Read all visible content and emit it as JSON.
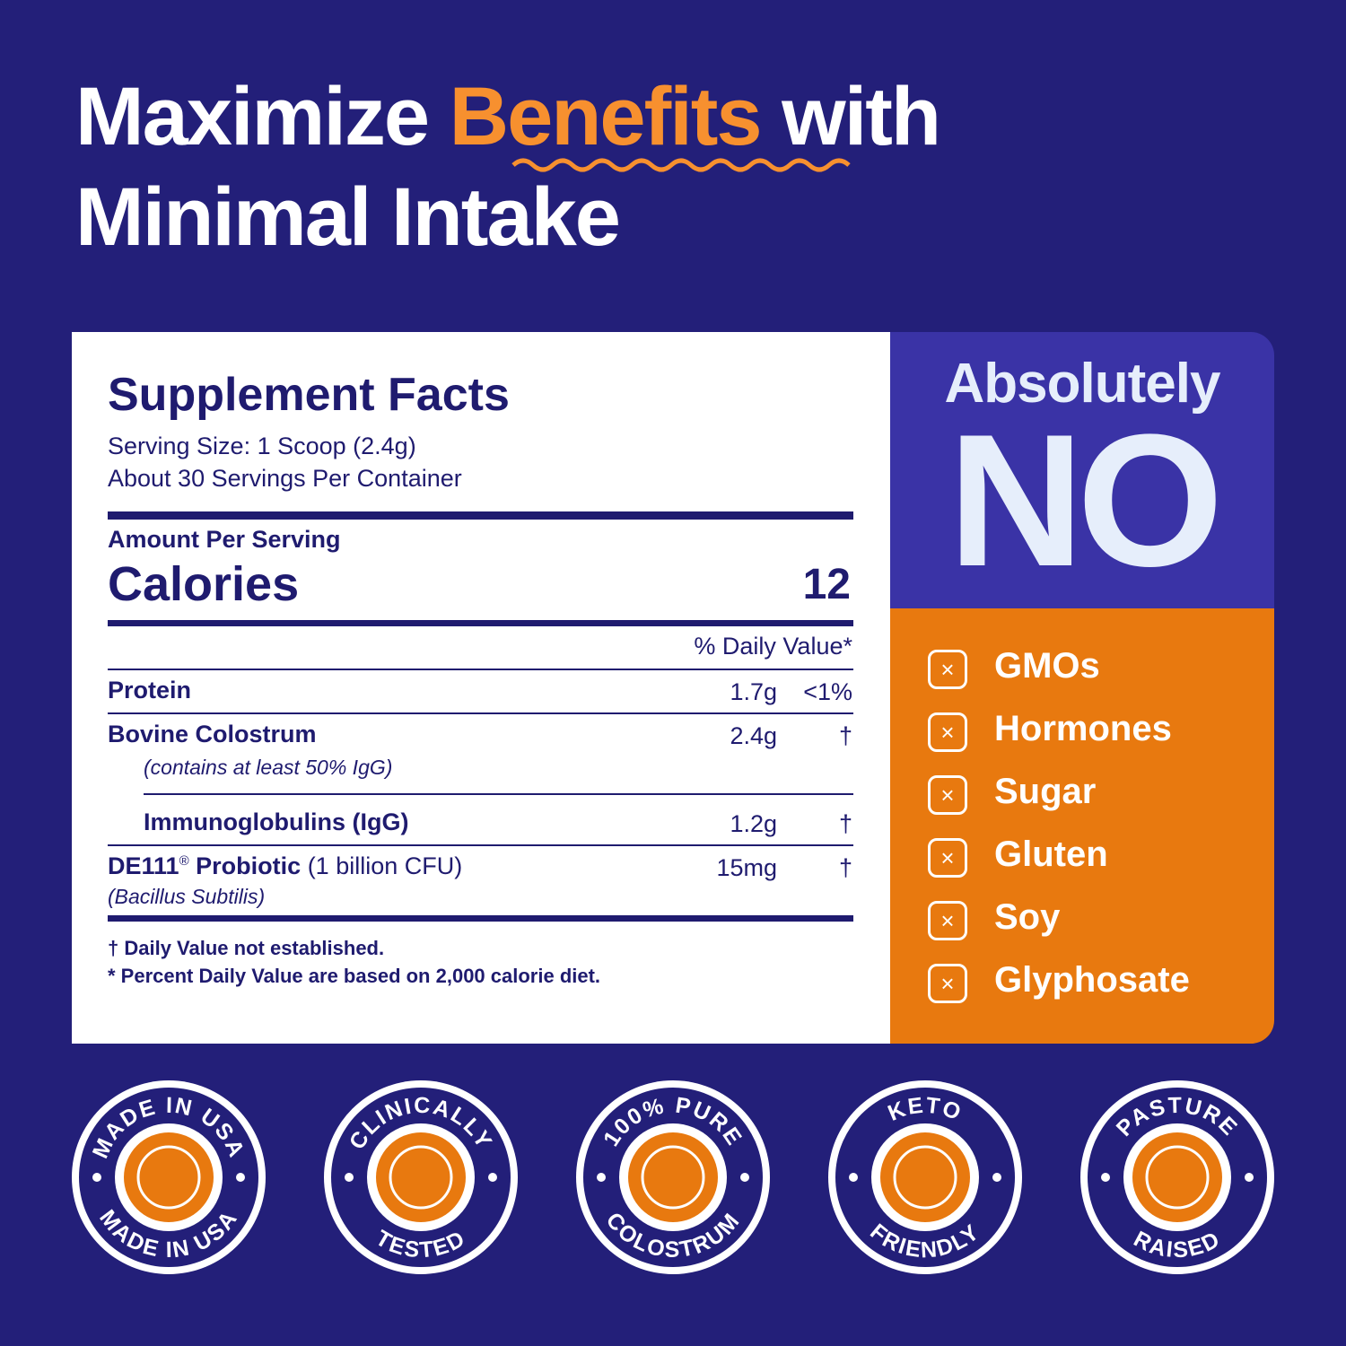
{
  "headline": {
    "part1": "Maximize",
    "highlight": "Benefits",
    "part2": "with",
    "line2": "Minimal Intake"
  },
  "facts": {
    "title": "Supplement Facts",
    "serving_size": "Serving Size: 1 Scoop (2.4g)",
    "servings": "About 30 Servings Per Container",
    "amount_per_serving": "Amount Per Serving",
    "calories_label": "Calories",
    "calories": 12,
    "dv_header": "% Daily Value*",
    "rows": [
      {
        "name": "Protein",
        "amount": "1.7g",
        "dv": "<1%"
      },
      {
        "name": "Bovine Colostrum",
        "note": "(contains at least 50% IgG)",
        "amount": "2.4g",
        "dv": "†"
      },
      {
        "name": "Immunoglobulins (IgG)",
        "amount": "1.2g",
        "dv": "†"
      },
      {
        "name": "DE111",
        "mark": "®",
        "name2": "Probiotic",
        "detail": "(1 billion CFU)",
        "note": "(Bacillus Subtilis)",
        "amount": "15mg",
        "dv": "†"
      }
    ],
    "footnotes": [
      "† Daily Value not established.",
      "* Percent Daily Value  are based on 2,000 calorie diet."
    ]
  },
  "free_from": {
    "title": "Absolutely",
    "big": "NO",
    "items": [
      "GMOs",
      "Hormones",
      "Sugar",
      "Gluten",
      "Soy",
      "Glyphosate"
    ]
  },
  "badges": [
    {
      "top": "MADE IN USA",
      "bottom": "MADE IN USA"
    },
    {
      "top": "CLINICALLY",
      "bottom": "TESTED"
    },
    {
      "top": "100% PURE",
      "bottom": "COLOSTRUM"
    },
    {
      "top": "KETO",
      "bottom": "FRIENDLY"
    },
    {
      "top": "PASTURE",
      "bottom": "RAISED"
    }
  ]
}
